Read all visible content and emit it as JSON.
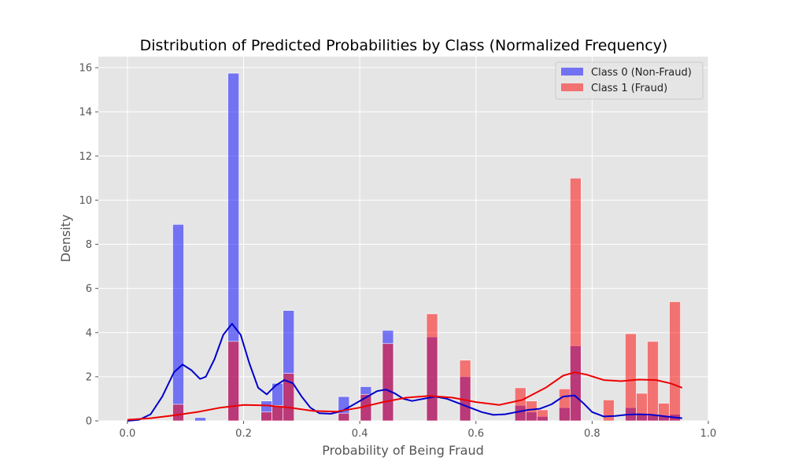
{
  "chart_data": {
    "type": "bar",
    "title": "Distribution of Predicted Probabilities by Class (Normalized Frequency)",
    "xlabel": "Probability of Being Fraud",
    "ylabel": "Density",
    "xlim": [
      -0.05,
      1.0
    ],
    "ylim": [
      0,
      16.5
    ],
    "xticks": [
      0.0,
      0.2,
      0.4,
      0.6,
      0.8,
      1.0
    ],
    "xtick_labels": [
      "0.0",
      "0.2",
      "0.4",
      "0.6",
      "0.8",
      "1.0"
    ],
    "yticks": [
      0,
      2,
      4,
      6,
      8,
      10,
      12,
      14,
      16
    ],
    "ytick_labels": [
      "0",
      "2",
      "4",
      "6",
      "8",
      "10",
      "12",
      "14",
      "16"
    ],
    "grid": true,
    "legend_position": "top-right",
    "bin_width": 0.019,
    "series": [
      {
        "name": "Class 0 (Non-Fraud)",
        "color": "#0000ff",
        "kde_color": "#0000cc",
        "bins": [
          {
            "x0": 0.078,
            "density": 8.9
          },
          {
            "x0": 0.116,
            "density": 0.15
          },
          {
            "x0": 0.173,
            "density": 15.75
          },
          {
            "x0": 0.23,
            "density": 0.9
          },
          {
            "x0": 0.249,
            "density": 1.7
          },
          {
            "x0": 0.268,
            "density": 5.0
          },
          {
            "x0": 0.363,
            "density": 1.1
          },
          {
            "x0": 0.401,
            "density": 1.55
          },
          {
            "x0": 0.439,
            "density": 4.1
          },
          {
            "x0": 0.515,
            "density": 3.8
          },
          {
            "x0": 0.572,
            "density": 2.0
          },
          {
            "x0": 0.667,
            "density": 0.7
          },
          {
            "x0": 0.686,
            "density": 0.4
          },
          {
            "x0": 0.705,
            "density": 0.2
          },
          {
            "x0": 0.743,
            "density": 0.6
          },
          {
            "x0": 0.762,
            "density": 3.4
          },
          {
            "x0": 0.857,
            "density": 0.6
          },
          {
            "x0": 0.876,
            "density": 0.3
          },
          {
            "x0": 0.895,
            "density": 0.25
          },
          {
            "x0": 0.914,
            "density": 0.2
          },
          {
            "x0": 0.933,
            "density": 0.3
          }
        ],
        "kde": [
          [
            0.0,
            0.0
          ],
          [
            0.02,
            0.05
          ],
          [
            0.04,
            0.3
          ],
          [
            0.06,
            1.1
          ],
          [
            0.08,
            2.2
          ],
          [
            0.095,
            2.55
          ],
          [
            0.11,
            2.3
          ],
          [
            0.125,
            1.9
          ],
          [
            0.135,
            2.0
          ],
          [
            0.15,
            2.8
          ],
          [
            0.165,
            3.9
          ],
          [
            0.18,
            4.4
          ],
          [
            0.195,
            3.9
          ],
          [
            0.21,
            2.6
          ],
          [
            0.225,
            1.5
          ],
          [
            0.24,
            1.2
          ],
          [
            0.255,
            1.6
          ],
          [
            0.27,
            1.85
          ],
          [
            0.285,
            1.7
          ],
          [
            0.3,
            1.1
          ],
          [
            0.315,
            0.6
          ],
          [
            0.33,
            0.35
          ],
          [
            0.35,
            0.32
          ],
          [
            0.37,
            0.45
          ],
          [
            0.39,
            0.75
          ],
          [
            0.41,
            1.05
          ],
          [
            0.43,
            1.35
          ],
          [
            0.445,
            1.42
          ],
          [
            0.46,
            1.25
          ],
          [
            0.475,
            1.0
          ],
          [
            0.49,
            0.9
          ],
          [
            0.51,
            1.0
          ],
          [
            0.53,
            1.1
          ],
          [
            0.55,
            1.0
          ],
          [
            0.57,
            0.8
          ],
          [
            0.59,
            0.6
          ],
          [
            0.61,
            0.4
          ],
          [
            0.63,
            0.27
          ],
          [
            0.65,
            0.3
          ],
          [
            0.67,
            0.4
          ],
          [
            0.69,
            0.5
          ],
          [
            0.71,
            0.55
          ],
          [
            0.73,
            0.75
          ],
          [
            0.75,
            1.1
          ],
          [
            0.77,
            1.15
          ],
          [
            0.785,
            0.8
          ],
          [
            0.8,
            0.4
          ],
          [
            0.82,
            0.2
          ],
          [
            0.84,
            0.22
          ],
          [
            0.86,
            0.28
          ],
          [
            0.88,
            0.3
          ],
          [
            0.9,
            0.28
          ],
          [
            0.92,
            0.22
          ],
          [
            0.94,
            0.16
          ],
          [
            0.955,
            0.12
          ]
        ]
      },
      {
        "name": "Class 1 (Fraud)",
        "color": "#ff0000",
        "kde_color": "#ee0000",
        "bins": [
          {
            "x0": 0.078,
            "density": 0.75
          },
          {
            "x0": 0.173,
            "density": 3.6
          },
          {
            "x0": 0.23,
            "density": 0.4
          },
          {
            "x0": 0.249,
            "density": 0.7
          },
          {
            "x0": 0.268,
            "density": 2.15
          },
          {
            "x0": 0.363,
            "density": 0.35
          },
          {
            "x0": 0.401,
            "density": 1.2
          },
          {
            "x0": 0.439,
            "density": 3.5
          },
          {
            "x0": 0.515,
            "density": 4.85
          },
          {
            "x0": 0.572,
            "density": 2.75
          },
          {
            "x0": 0.667,
            "density": 1.5
          },
          {
            "x0": 0.686,
            "density": 0.9
          },
          {
            "x0": 0.705,
            "density": 0.5
          },
          {
            "x0": 0.743,
            "density": 1.45
          },
          {
            "x0": 0.762,
            "density": 11.0
          },
          {
            "x0": 0.819,
            "density": 0.95
          },
          {
            "x0": 0.857,
            "density": 3.95
          },
          {
            "x0": 0.876,
            "density": 1.25
          },
          {
            "x0": 0.895,
            "density": 3.6
          },
          {
            "x0": 0.914,
            "density": 0.8
          },
          {
            "x0": 0.933,
            "density": 5.4
          }
        ],
        "kde": [
          [
            0.0,
            0.05
          ],
          [
            0.04,
            0.12
          ],
          [
            0.08,
            0.25
          ],
          [
            0.12,
            0.4
          ],
          [
            0.16,
            0.6
          ],
          [
            0.2,
            0.72
          ],
          [
            0.24,
            0.7
          ],
          [
            0.28,
            0.6
          ],
          [
            0.32,
            0.45
          ],
          [
            0.36,
            0.42
          ],
          [
            0.4,
            0.6
          ],
          [
            0.44,
            0.85
          ],
          [
            0.48,
            1.05
          ],
          [
            0.52,
            1.13
          ],
          [
            0.56,
            1.05
          ],
          [
            0.6,
            0.85
          ],
          [
            0.64,
            0.72
          ],
          [
            0.68,
            0.95
          ],
          [
            0.72,
            1.5
          ],
          [
            0.75,
            2.05
          ],
          [
            0.77,
            2.2
          ],
          [
            0.79,
            2.1
          ],
          [
            0.82,
            1.85
          ],
          [
            0.85,
            1.8
          ],
          [
            0.88,
            1.87
          ],
          [
            0.91,
            1.85
          ],
          [
            0.935,
            1.7
          ],
          [
            0.955,
            1.5
          ]
        ]
      }
    ]
  }
}
